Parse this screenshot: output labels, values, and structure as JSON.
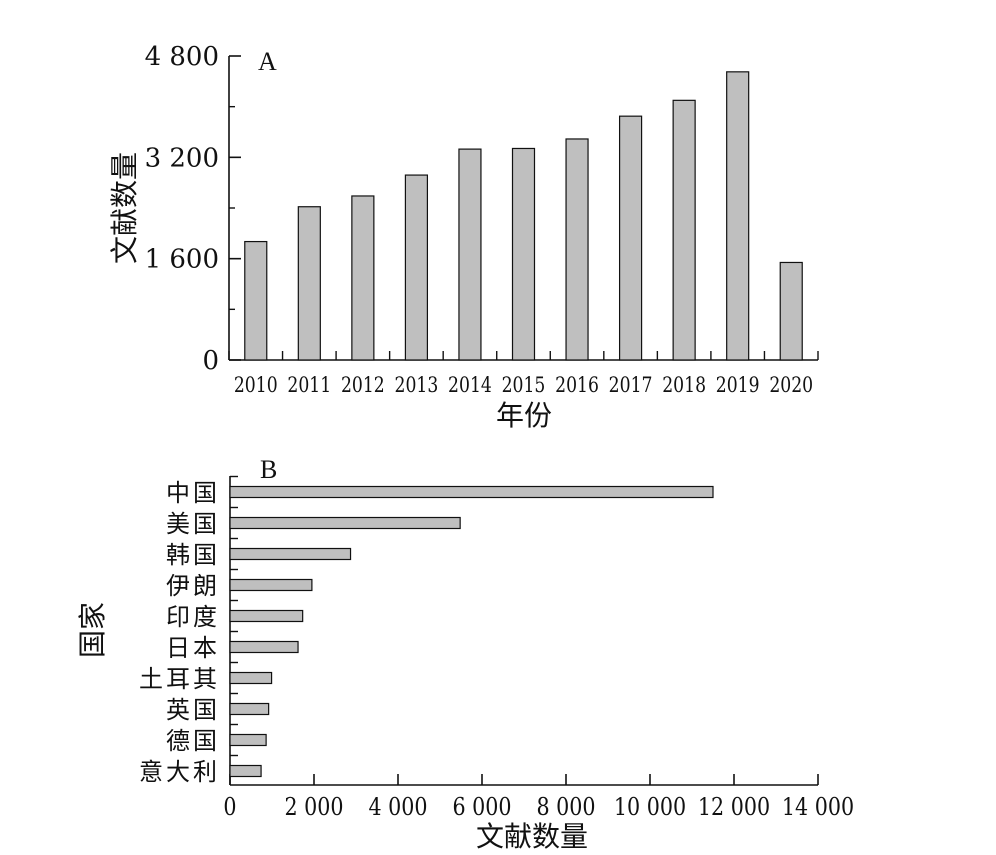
{
  "chart_data": [
    {
      "type": "bar",
      "panel_label": "A",
      "categories": [
        "2010",
        "2011",
        "2012",
        "2013",
        "2014",
        "2015",
        "2016",
        "2017",
        "2018",
        "2019",
        "2020"
      ],
      "values": [
        1870,
        2420,
        2590,
        2920,
        3330,
        3340,
        3490,
        3850,
        4100,
        4550,
        1540
      ],
      "xlabel": "年份",
      "ylabel": "文献数量",
      "ylim": [
        0,
        4800
      ],
      "yticks": [
        0,
        1600,
        3200,
        4800
      ],
      "ytick_labels": [
        "0",
        "1 600",
        "3 200",
        "4 800"
      ],
      "bar_color": "#bfbfbf",
      "grid": false
    },
    {
      "type": "bar",
      "orientation": "horizontal",
      "panel_label": "B",
      "categories": [
        "中国",
        "美国",
        "韩国",
        "伊朗",
        "印度",
        "日本",
        "土耳其",
        "英国",
        "德国",
        "意大利"
      ],
      "values": [
        11500,
        5480,
        2870,
        1950,
        1730,
        1620,
        990,
        920,
        860,
        740
      ],
      "xlabel": "文献数量",
      "ylabel": "国家",
      "xlim": [
        0,
        14000
      ],
      "xticks": [
        0,
        2000,
        4000,
        6000,
        8000,
        10000,
        12000,
        14000
      ],
      "xtick_labels": [
        "0",
        "2 000",
        "4 000",
        "6 000",
        "8 000",
        "10 000",
        "12 000",
        "14 000"
      ],
      "bar_color": "#bfbfbf",
      "grid": false
    }
  ]
}
